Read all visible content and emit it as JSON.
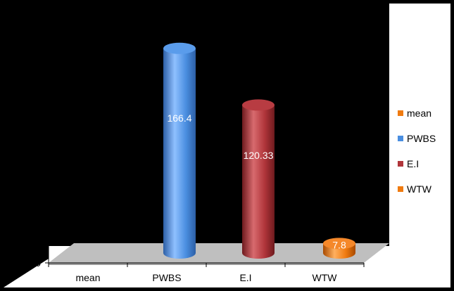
{
  "chart_data": {
    "type": "bar",
    "style": "3d-cylinder",
    "categories": [
      "mean",
      "PWBS",
      "E.I",
      "WTW"
    ],
    "values": [
      null,
      166.4,
      120.33,
      7.8
    ],
    "data_labels": [
      "",
      "166.4",
      "120.33",
      "7.8"
    ],
    "ylim": [
      0,
      180
    ],
    "yticks": [
      0,
      20,
      40,
      60,
      80,
      100,
      120,
      140,
      160,
      180
    ],
    "ytick_labels": [
      "0",
      "20",
      "40",
      "60",
      "80",
      "100",
      "120",
      "140",
      "160",
      "180"
    ],
    "grid": false,
    "legend": {
      "position": "right",
      "entries": [
        {
          "label": "mean",
          "color": "#f07b10"
        },
        {
          "label": "PWBS",
          "color": "#4a8ee0"
        },
        {
          "label": "E.I",
          "color": "#b0353a"
        },
        {
          "label": "WTW",
          "color": "#f07b10"
        }
      ]
    },
    "colors": {
      "PWBS": "#4a8ee0",
      "E.I": "#b0353a",
      "WTW": "#f07b10",
      "floor": "#bfbfbf",
      "plot_background": "#000000",
      "chart_area": "#ffffff"
    }
  }
}
